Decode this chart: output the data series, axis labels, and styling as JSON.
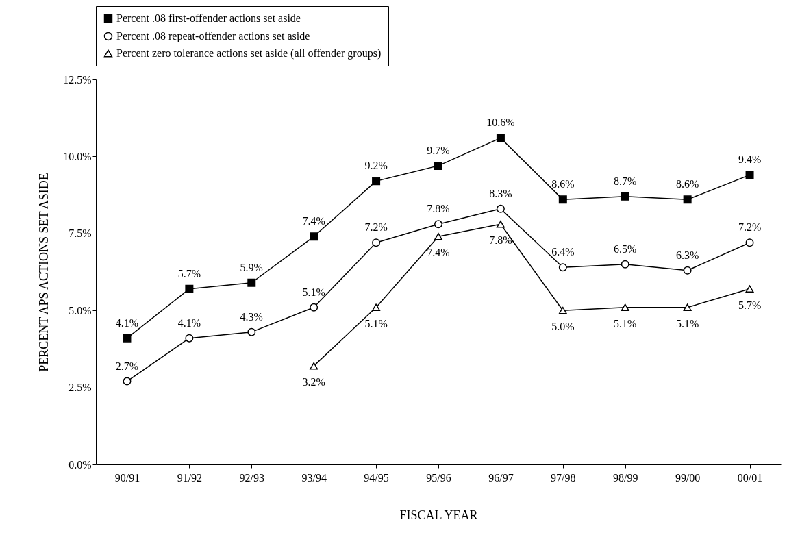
{
  "chart_data": {
    "type": "line",
    "xlabel": "FISCAL YEAR",
    "ylabel": "PERCENT APS ACTIONS SET ASIDE",
    "categories": [
      "90/91",
      "91/92",
      "92/93",
      "93/94",
      "94/95",
      "95/96",
      "96/97",
      "97/98",
      "98/99",
      "99/00",
      "00/01"
    ],
    "series": [
      {
        "name": "Percent .08 first-offender actions set aside",
        "color": "#000000",
        "marker": "square",
        "values": [
          4.1,
          5.7,
          5.9,
          7.4,
          9.2,
          9.7,
          10.6,
          8.6,
          8.7,
          8.6,
          9.4
        ],
        "value_labels": [
          "4.1%",
          "5.7%",
          "5.9%",
          "7.4%",
          "9.2%",
          "9.7%",
          "10.6%",
          "8.6%",
          "8.7%",
          "8.6%",
          "9.4%"
        ]
      },
      {
        "name": "Percent .08 repeat-offender actions set aside",
        "color": "#000000",
        "marker": "circle",
        "values": [
          2.7,
          4.1,
          4.3,
          5.1,
          7.2,
          7.8,
          8.3,
          6.4,
          6.5,
          6.3,
          7.2
        ],
        "value_labels": [
          "2.7%",
          "4.1%",
          "4.3%",
          "5.1%",
          "7.2%",
          "7.8%",
          "8.3%",
          "6.4%",
          "6.5%",
          "6.3%",
          "7.2%"
        ]
      },
      {
        "name": "Percent zero tolerance actions set aside (all offender groups)",
        "color": "#000000",
        "marker": "triangle",
        "values": [
          null,
          null,
          null,
          3.2,
          5.1,
          7.4,
          7.8,
          5.0,
          5.1,
          5.1,
          5.7
        ],
        "value_labels": [
          null,
          null,
          null,
          "3.2%",
          "5.1%",
          "7.4%",
          "7.8%",
          "5.0%",
          "5.1%",
          "5.1%",
          "5.7%"
        ]
      }
    ],
    "ylim": [
      0,
      12.5
    ],
    "yticks": [
      {
        "value": 0,
        "label": "0.0%"
      },
      {
        "value": 2.5,
        "label": "2.5%"
      },
      {
        "value": 5,
        "label": "5.0%"
      },
      {
        "value": 7.5,
        "label": "7.5%"
      },
      {
        "value": 10,
        "label": "10.0%"
      },
      {
        "value": 12.5,
        "label": "12.5%"
      }
    ],
    "grid": false,
    "legend": "top",
    "line_style": "solid"
  }
}
